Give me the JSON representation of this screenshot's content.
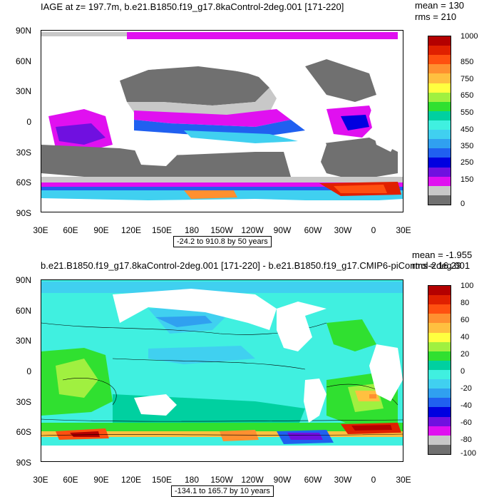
{
  "top_panel": {
    "title": "IAGE at z= 197.7m, b.e21.B1850.f19_g17.8kaControl-2deg.001 [171-220]",
    "mean_label": "mean = 130",
    "rms_label": "rms = 210",
    "range_label": "-24.2 to 910.8 by 50 years",
    "colorbar": {
      "labels": [
        "1000",
        "850",
        "750",
        "650",
        "550",
        "450",
        "350",
        "250",
        "150",
        "0"
      ],
      "colors": [
        "#b40000",
        "#e02000",
        "#ff5010",
        "#ff9030",
        "#ffc040",
        "#ffff40",
        "#a0f040",
        "#30e030",
        "#00d0a0",
        "#40f0e0",
        "#40d0f0",
        "#30a0f0",
        "#2060f0",
        "#0000e0",
        "#7010e0",
        "#e010f0",
        "#c8c8c8",
        "#707070"
      ]
    }
  },
  "bottom_panel": {
    "title": "b.e21.B1850.f19_g17.8kaControl-2deg.001 [171-220] - b.e21.B1850.f19_g17.CMIP6-piControl-2deg.001",
    "mean_label": "mean = -1.955",
    "rms_label": "rms = 16.29",
    "range_label": "-134.1 to 165.7 by 10 years",
    "colorbar": {
      "labels": [
        "100",
        "80",
        "60",
        "40",
        "20",
        "0",
        "-20",
        "-40",
        "-60",
        "-80",
        "-100"
      ],
      "colors": [
        "#b40000",
        "#e02000",
        "#ff5010",
        "#ff9030",
        "#ffc040",
        "#ffff40",
        "#a0f040",
        "#30e030",
        "#00d0a0",
        "#40f0e0",
        "#40d0f0",
        "#30a0f0",
        "#2060f0",
        "#0000e0",
        "#7010e0",
        "#e010f0",
        "#c8c8c8",
        "#707070"
      ]
    }
  },
  "axes": {
    "lat_labels": [
      "90N",
      "60N",
      "30N",
      "0",
      "30S",
      "60S",
      "90S"
    ],
    "lon_labels": [
      "30E",
      "60E",
      "90E",
      "120E",
      "150E",
      "180",
      "150W",
      "120W",
      "90W",
      "60W",
      "30W",
      "0",
      "30E"
    ]
  },
  "colors": {
    "land": "#ffffff",
    "mask_grey": "#6e6e6e",
    "background": "#ffffff"
  }
}
